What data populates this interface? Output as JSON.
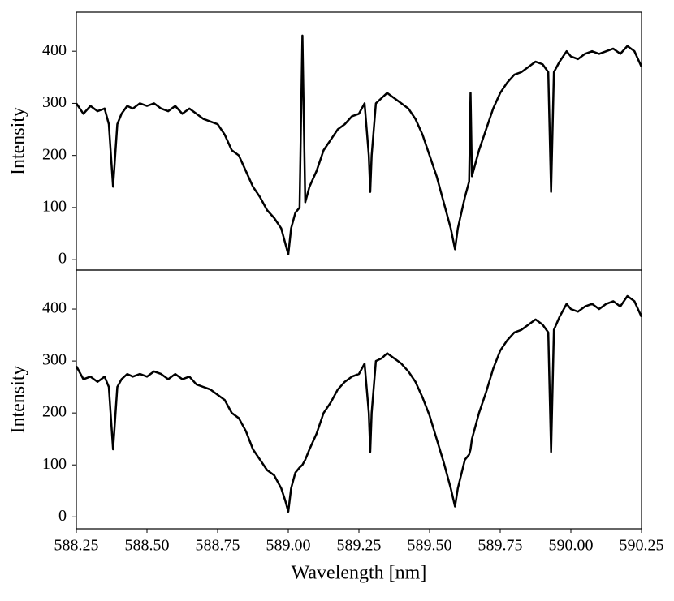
{
  "chart_data": [
    {
      "type": "line",
      "ylabel": "Intensity",
      "xlim": [
        588.25,
        590.25
      ],
      "ylim": [
        -20,
        475
      ],
      "yticks": [
        0,
        100,
        200,
        300,
        400
      ],
      "x": [
        588.25,
        588.275,
        588.3,
        588.325,
        588.35,
        588.365,
        588.38,
        588.395,
        588.41,
        588.43,
        588.45,
        588.475,
        588.5,
        588.525,
        588.55,
        588.575,
        588.6,
        588.625,
        588.65,
        588.675,
        588.7,
        588.725,
        588.75,
        588.775,
        588.8,
        588.825,
        588.85,
        588.875,
        588.9,
        588.925,
        588.95,
        588.975,
        588.99,
        589.0,
        589.01,
        589.025,
        589.04,
        589.05,
        589.06,
        589.075,
        589.1,
        589.125,
        589.15,
        589.175,
        589.2,
        589.225,
        589.25,
        589.27,
        589.285,
        589.29,
        589.295,
        589.31,
        589.33,
        589.35,
        589.375,
        589.4,
        589.425,
        589.45,
        589.475,
        589.5,
        589.525,
        589.55,
        589.575,
        589.59,
        589.6,
        589.625,
        589.64,
        589.645,
        589.65,
        589.675,
        589.7,
        589.725,
        589.75,
        589.775,
        589.8,
        589.825,
        589.85,
        589.875,
        589.9,
        589.92,
        589.93,
        589.94,
        589.96,
        589.985,
        590.0,
        590.025,
        590.05,
        590.075,
        590.1,
        590.125,
        590.15,
        590.175,
        590.2,
        590.225,
        590.25
      ],
      "series": [
        {
          "color": "#000000",
          "values": [
            300,
            280,
            295,
            285,
            290,
            260,
            140,
            260,
            280,
            295,
            290,
            300,
            295,
            300,
            290,
            285,
            295,
            280,
            290,
            280,
            270,
            265,
            260,
            240,
            210,
            200,
            170,
            140,
            120,
            95,
            80,
            60,
            30,
            10,
            60,
            90,
            100,
            430,
            110,
            140,
            170,
            210,
            230,
            250,
            260,
            275,
            280,
            300,
            200,
            130,
            200,
            300,
            310,
            320,
            310,
            300,
            290,
            270,
            240,
            200,
            160,
            110,
            60,
            20,
            60,
            120,
            150,
            320,
            160,
            210,
            250,
            290,
            320,
            340,
            355,
            360,
            370,
            380,
            375,
            360,
            130,
            360,
            380,
            400,
            390,
            385,
            395,
            400,
            395,
            400,
            405,
            395,
            410,
            400,
            370
          ]
        }
      ]
    },
    {
      "type": "line",
      "xlabel": "Wavelength [nm]",
      "ylabel": "Intensity",
      "xlim": [
        588.25,
        590.25
      ],
      "ylim": [
        -23,
        475
      ],
      "yticks": [
        0,
        100,
        200,
        300,
        400
      ],
      "xticks": [
        588.25,
        {
          "value": 588.5,
          "label": "588.50"
        },
        588.75,
        {
          "value": 589,
          "label": "589.00"
        },
        589.25,
        {
          "value": 589.5,
          "label": "589.50"
        },
        589.75,
        {
          "value": 590,
          "label": "590.00"
        },
        590.25
      ],
      "x": [
        588.25,
        588.275,
        588.3,
        588.325,
        588.35,
        588.365,
        588.38,
        588.395,
        588.41,
        588.43,
        588.45,
        588.475,
        588.5,
        588.525,
        588.55,
        588.575,
        588.6,
        588.625,
        588.65,
        588.675,
        588.7,
        588.725,
        588.75,
        588.775,
        588.8,
        588.825,
        588.85,
        588.875,
        588.9,
        588.925,
        588.95,
        588.975,
        588.99,
        589.0,
        589.01,
        589.025,
        589.04,
        589.05,
        589.06,
        589.075,
        589.1,
        589.125,
        589.15,
        589.175,
        589.2,
        589.225,
        589.25,
        589.27,
        589.285,
        589.29,
        589.295,
        589.31,
        589.33,
        589.35,
        589.375,
        589.4,
        589.425,
        589.45,
        589.475,
        589.5,
        589.525,
        589.55,
        589.575,
        589.59,
        589.6,
        589.625,
        589.64,
        589.645,
        589.65,
        589.675,
        589.7,
        589.725,
        589.75,
        589.775,
        589.8,
        589.825,
        589.85,
        589.875,
        589.9,
        589.92,
        589.93,
        589.94,
        589.96,
        589.985,
        590.0,
        590.025,
        590.05,
        590.075,
        590.1,
        590.125,
        590.15,
        590.175,
        590.2,
        590.225,
        590.25
      ],
      "series": [
        {
          "color": "#000000",
          "values": [
            290,
            265,
            270,
            260,
            270,
            250,
            130,
            250,
            265,
            275,
            270,
            275,
            270,
            280,
            275,
            265,
            275,
            265,
            270,
            255,
            250,
            245,
            235,
            225,
            200,
            190,
            165,
            130,
            110,
            90,
            80,
            55,
            30,
            10,
            55,
            85,
            95,
            100,
            110,
            130,
            160,
            200,
            220,
            245,
            260,
            270,
            275,
            295,
            200,
            125,
            200,
            300,
            305,
            315,
            305,
            295,
            280,
            260,
            230,
            195,
            150,
            105,
            55,
            20,
            55,
            110,
            120,
            130,
            150,
            200,
            240,
            285,
            320,
            340,
            355,
            360,
            370,
            380,
            370,
            355,
            125,
            360,
            385,
            410,
            400,
            395,
            405,
            410,
            400,
            410,
            415,
            405,
            425,
            415,
            385
          ]
        }
      ]
    }
  ]
}
